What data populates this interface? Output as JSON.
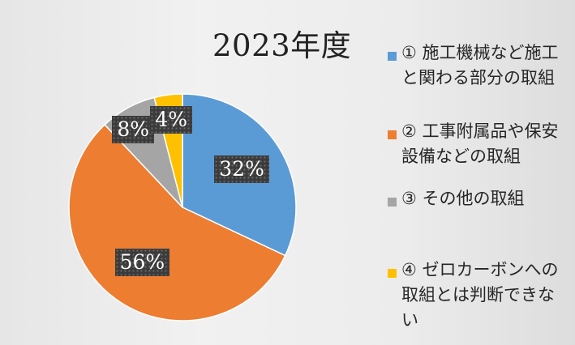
{
  "chart_data": {
    "type": "pie",
    "title": "2023年度",
    "categories": [
      "① 施工機械など施工と関わる部分の取組",
      "② 工事附属品や保安設備などの取組",
      "③ その他の取組",
      "④ ゼロカーボンへの取組とは判断できない"
    ],
    "values": [
      32,
      56,
      8,
      4
    ],
    "data_labels": [
      "32%",
      "56%",
      "8%",
      "4%"
    ],
    "colors": [
      "#5b9bd5",
      "#ed7d31",
      "#a5a5a5",
      "#ffc000"
    ],
    "start_angle_deg": 0,
    "direction": "clockwise",
    "legend_position": "right"
  }
}
